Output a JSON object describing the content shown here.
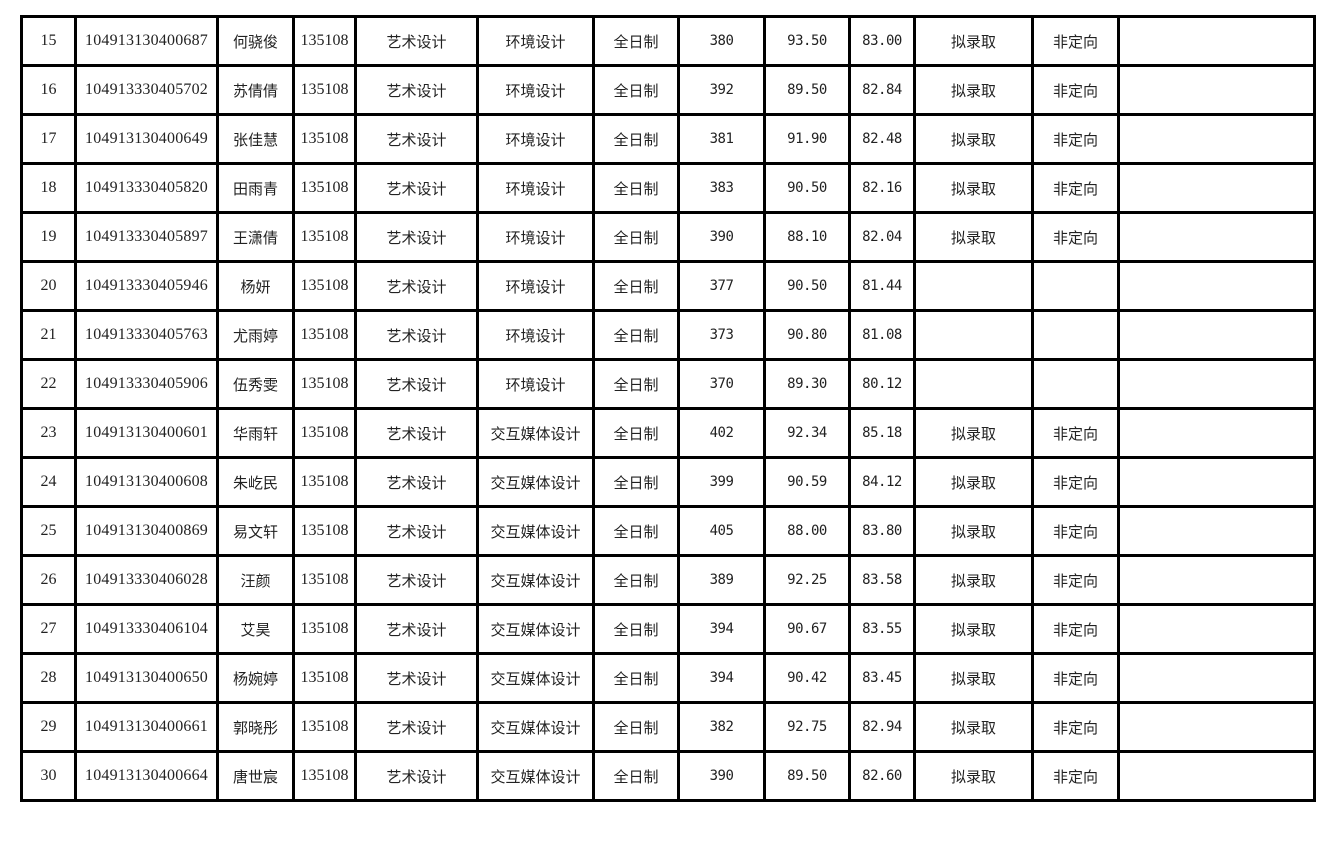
{
  "table": {
    "rows": [
      [
        "15",
        "104913130400687",
        "何骁俊",
        "135108",
        "艺术设计",
        "环境设计",
        "全日制",
        "380",
        "93.50",
        "83.00",
        "拟录取",
        "非定向",
        ""
      ],
      [
        "16",
        "104913330405702",
        "苏倩倩",
        "135108",
        "艺术设计",
        "环境设计",
        "全日制",
        "392",
        "89.50",
        "82.84",
        "拟录取",
        "非定向",
        ""
      ],
      [
        "17",
        "104913130400649",
        "张佳慧",
        "135108",
        "艺术设计",
        "环境设计",
        "全日制",
        "381",
        "91.90",
        "82.48",
        "拟录取",
        "非定向",
        ""
      ],
      [
        "18",
        "104913330405820",
        "田雨青",
        "135108",
        "艺术设计",
        "环境设计",
        "全日制",
        "383",
        "90.50",
        "82.16",
        "拟录取",
        "非定向",
        ""
      ],
      [
        "19",
        "104913330405897",
        "王潇倩",
        "135108",
        "艺术设计",
        "环境设计",
        "全日制",
        "390",
        "88.10",
        "82.04",
        "拟录取",
        "非定向",
        ""
      ],
      [
        "20",
        "104913330405946",
        "杨妍",
        "135108",
        "艺术设计",
        "环境设计",
        "全日制",
        "377",
        "90.50",
        "81.44",
        "",
        "",
        ""
      ],
      [
        "21",
        "104913330405763",
        "尤雨婷",
        "135108",
        "艺术设计",
        "环境设计",
        "全日制",
        "373",
        "90.80",
        "81.08",
        "",
        "",
        ""
      ],
      [
        "22",
        "104913330405906",
        "伍秀雯",
        "135108",
        "艺术设计",
        "环境设计",
        "全日制",
        "370",
        "89.30",
        "80.12",
        "",
        "",
        ""
      ],
      [
        "23",
        "104913130400601",
        "华雨轩",
        "135108",
        "艺术设计",
        "交互媒体设计",
        "全日制",
        "402",
        "92.34",
        "85.18",
        "拟录取",
        "非定向",
        ""
      ],
      [
        "24",
        "104913130400608",
        "朱屹民",
        "135108",
        "艺术设计",
        "交互媒体设计",
        "全日制",
        "399",
        "90.59",
        "84.12",
        "拟录取",
        "非定向",
        ""
      ],
      [
        "25",
        "104913130400869",
        "易文轩",
        "135108",
        "艺术设计",
        "交互媒体设计",
        "全日制",
        "405",
        "88.00",
        "83.80",
        "拟录取",
        "非定向",
        ""
      ],
      [
        "26",
        "104913330406028",
        "汪颜",
        "135108",
        "艺术设计",
        "交互媒体设计",
        "全日制",
        "389",
        "92.25",
        "83.58",
        "拟录取",
        "非定向",
        ""
      ],
      [
        "27",
        "104913330406104",
        "艾昊",
        "135108",
        "艺术设计",
        "交互媒体设计",
        "全日制",
        "394",
        "90.67",
        "83.55",
        "拟录取",
        "非定向",
        ""
      ],
      [
        "28",
        "104913130400650",
        "杨婉婷",
        "135108",
        "艺术设计",
        "交互媒体设计",
        "全日制",
        "394",
        "90.42",
        "83.45",
        "拟录取",
        "非定向",
        ""
      ],
      [
        "29",
        "104913130400661",
        "郭晓彤",
        "135108",
        "艺术设计",
        "交互媒体设计",
        "全日制",
        "382",
        "92.75",
        "82.94",
        "拟录取",
        "非定向",
        ""
      ],
      [
        "30",
        "104913130400664",
        "唐世宸",
        "135108",
        "艺术设计",
        "交互媒体设计",
        "全日制",
        "390",
        "89.50",
        "82.60",
        "拟录取",
        "非定向",
        ""
      ]
    ]
  }
}
